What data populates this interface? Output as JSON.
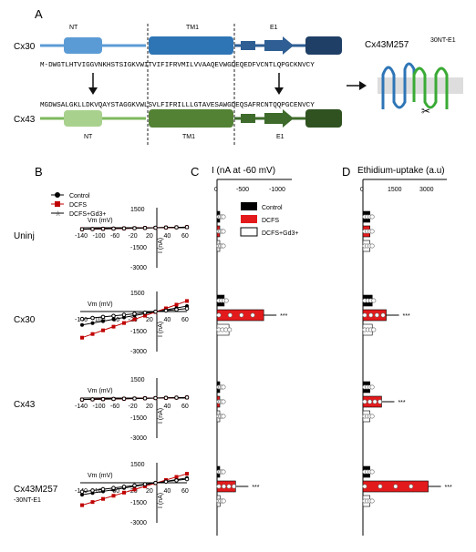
{
  "panels": {
    "a": "A",
    "b": "B",
    "c": "C",
    "d": "D"
  },
  "panel_a": {
    "cx30_label": "Cx30",
    "cx43_label": "Cx43",
    "seg_nt": "NT",
    "seg_tm1": "TM1",
    "seg_e1": "E1",
    "seq_cx30": "M-DWGTLHTVIGGVNKHSTSIGKVWITVIFIFRVMILVVAAQEVWGDEQEDFVCNTLQPGCKNVCY",
    "seq_cx43": "MGDWSALGKLLDKVQAYSTAGGKVWLSVLFIFRILLLGTAVESAWGDEQSAFRCNTQQPGCENVCY",
    "chimera_label": "Cx43M257",
    "chimera_sup": "30NT-E1",
    "colors": {
      "cx30_light": "#5b9bd5",
      "cx30_dark": "#2e5e93",
      "cx43_light": "#7cb85c",
      "cx43_dark": "#3e6b2b"
    }
  },
  "panel_b": {
    "legend": [
      "Control",
      "DCFS",
      "DCFS+Gd3+"
    ],
    "rows": [
      "Uninj",
      "Cx30",
      "Cx43",
      "Cx43M257"
    ],
    "row_sub": "-30NT-E1",
    "vm_label": "Vm (mV)",
    "i_label": "I (nA)",
    "x_ticks": [
      "-140",
      "-100",
      "-60",
      "-20",
      "20",
      "40",
      "60"
    ],
    "y_ticks": [
      "1500",
      "-1500",
      "-3000"
    ],
    "y_ticks_short": [
      "1500",
      "-1500",
      "-3000"
    ]
  },
  "panel_c": {
    "title": "I (nA at -60 mV)",
    "ticks": [
      "0",
      "-500",
      "-1000"
    ],
    "legend": [
      "Control",
      "DCFS",
      "DCFS+Gd3+"
    ],
    "chart_data": {
      "type": "bar",
      "categories": [
        "Uninj",
        "Cx30",
        "Cx43",
        "Cx43M257-30NT-E1"
      ],
      "series": [
        {
          "name": "Control",
          "values": [
            -20,
            -120,
            -20,
            -30
          ]
        },
        {
          "name": "DCFS",
          "values": [
            -20,
            -780,
            -20,
            -310
          ]
        },
        {
          "name": "DCFS+Gd3+",
          "values": [
            -20,
            -200,
            -20,
            -50
          ]
        }
      ],
      "xlim": [
        0,
        -1250
      ]
    }
  },
  "panel_d": {
    "title": "Ethidium-uptake (a.u)",
    "ticks": [
      "0",
      "1500",
      "3000"
    ],
    "chart_data": {
      "type": "bar",
      "categories": [
        "Uninj",
        "Cx30",
        "Cx43",
        "Cx43M257-30NT-E1"
      ],
      "series": [
        {
          "name": "Control",
          "values": [
            300,
            400,
            300,
            300
          ]
        },
        {
          "name": "DCFS",
          "values": [
            300,
            1000,
            800,
            2800
          ]
        },
        {
          "name": "DCFS+Gd3+",
          "values": [
            300,
            400,
            300,
            300
          ]
        }
      ],
      "xlim": [
        0,
        3600
      ]
    }
  },
  "significance": "***"
}
